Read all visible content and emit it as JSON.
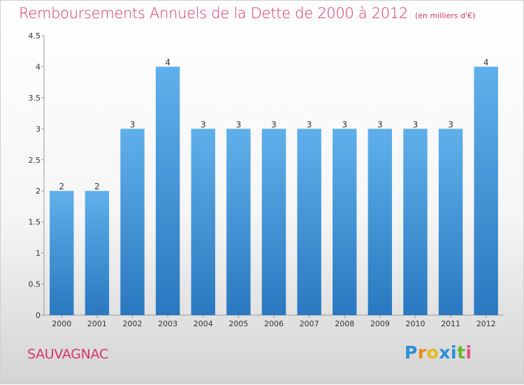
{
  "chart_data": {
    "type": "bar",
    "title": "Remboursements Annuels de la Dette de 2000 à 2012",
    "subtitle": "(en milliers d'€)",
    "categories": [
      "2000",
      "2001",
      "2002",
      "2003",
      "2004",
      "2005",
      "2006",
      "2007",
      "2008",
      "2009",
      "2010",
      "2011",
      "2012"
    ],
    "values": [
      2,
      2,
      3,
      4,
      3,
      3,
      3,
      3,
      3,
      3,
      3,
      3,
      4
    ],
    "data_labels": [
      "2",
      "2",
      "3",
      "4",
      "3",
      "3",
      "3",
      "3",
      "3",
      "3",
      "3",
      "3",
      "4"
    ],
    "ylim": [
      0,
      4.5
    ],
    "yticks": [
      "0",
      "0.5",
      "1",
      "1.5",
      "2",
      "2.5",
      "3",
      "3.5",
      "4",
      "4.5"
    ],
    "xlabel": "",
    "ylabel": "",
    "grid": false,
    "bar_color": "#3a8fd6",
    "title_color": "#d6336c"
  },
  "footer": {
    "commune": "SAUVAGNAC",
    "logo_letters": [
      "P",
      "r",
      "o",
      "x",
      "i",
      "t",
      "i"
    ]
  }
}
